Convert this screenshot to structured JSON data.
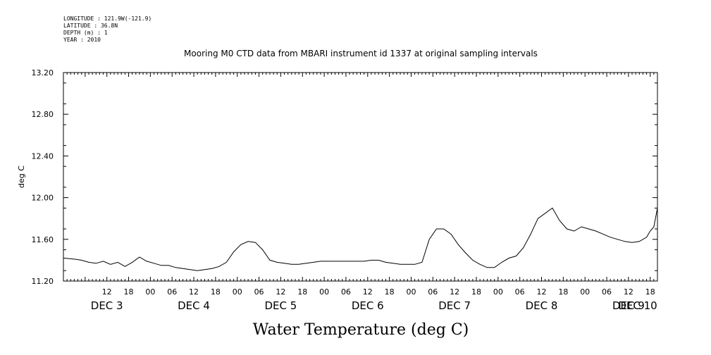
{
  "meta": {
    "longitude": "LONGITUDE : 121.9W(-121.9)",
    "latitude": "LATITUDE : 36.8N",
    "depth": "DEPTH (m) : 1",
    "year": "YEAR : 2010"
  },
  "chart_data": {
    "type": "line",
    "title": "Mooring M0 CTD data from MBARI instrument id 1337 at original sampling intervals",
    "xlabel": "Water Temperature (deg C)",
    "ylabel": "deg C",
    "ylim": [
      11.2,
      13.2
    ],
    "xlim_hours": [
      72,
      236
    ],
    "y_ticks": [
      "11.20",
      "11.60",
      "12.00",
      "12.40",
      "12.80",
      "13.20"
    ],
    "x_hour_labels": [
      {
        "t": 84,
        "label": "12"
      },
      {
        "t": 90,
        "label": "18"
      },
      {
        "t": 96,
        "label": "00"
      },
      {
        "t": 102,
        "label": "06"
      },
      {
        "t": 108,
        "label": "12"
      },
      {
        "t": 114,
        "label": "18"
      },
      {
        "t": 120,
        "label": "00"
      },
      {
        "t": 126,
        "label": "06"
      },
      {
        "t": 132,
        "label": "12"
      },
      {
        "t": 138,
        "label": "18"
      },
      {
        "t": 144,
        "label": "00"
      },
      {
        "t": 150,
        "label": "06"
      },
      {
        "t": 156,
        "label": "12"
      },
      {
        "t": 162,
        "label": "18"
      },
      {
        "t": 168,
        "label": "00"
      },
      {
        "t": 174,
        "label": "06"
      },
      {
        "t": 180,
        "label": "12"
      },
      {
        "t": 186,
        "label": "18"
      },
      {
        "t": 192,
        "label": "00"
      },
      {
        "t": 198,
        "label": "06"
      },
      {
        "t": 204,
        "label": "12"
      },
      {
        "t": 210,
        "label": "18"
      },
      {
        "t": 216,
        "label": "00"
      },
      {
        "t": 222,
        "label": "06"
      },
      {
        "t": 228,
        "label": "12"
      },
      {
        "t": 234,
        "label": "18"
      }
    ],
    "x_day_labels": [
      {
        "t": 84,
        "label": "DEC  3"
      },
      {
        "t": 108,
        "label": "DEC  4"
      },
      {
        "t": 132,
        "label": "DEC  5"
      },
      {
        "t": 156,
        "label": "DEC  6"
      },
      {
        "t": 180,
        "label": "DEC  7"
      },
      {
        "t": 204,
        "label": "DEC  8"
      },
      {
        "t": 228,
        "label": "DEC  9"
      },
      {
        "t": 246,
        "label": "DEC 10"
      }
    ],
    "series": [
      {
        "x": [
          72,
          75,
          77,
          79,
          81,
          83,
          85,
          87,
          89,
          91,
          93,
          95,
          97,
          99,
          101,
          103,
          105,
          107,
          109,
          111,
          113,
          115,
          117,
          119,
          121,
          123,
          125,
          127,
          129,
          131,
          133,
          135,
          137,
          139,
          141,
          143,
          145,
          147,
          149,
          151,
          153,
          155,
          157,
          159,
          161,
          163,
          165,
          167,
          169,
          171,
          173,
          175,
          177,
          179,
          181,
          183,
          185,
          187,
          189,
          191,
          193,
          195,
          197,
          199,
          201,
          203,
          205,
          207,
          209,
          211,
          213,
          215,
          217,
          219,
          221,
          223,
          225,
          227,
          229,
          231,
          233,
          234,
          235,
          236
        ],
        "values": [
          11.42,
          11.41,
          11.4,
          11.38,
          11.37,
          11.39,
          11.36,
          11.38,
          11.34,
          11.38,
          11.43,
          11.39,
          11.37,
          11.35,
          11.35,
          11.33,
          11.32,
          11.31,
          11.3,
          11.31,
          11.32,
          11.34,
          11.38,
          11.48,
          11.55,
          11.58,
          11.57,
          11.5,
          11.4,
          11.38,
          11.37,
          11.36,
          11.36,
          11.37,
          11.38,
          11.39,
          11.39,
          11.39,
          11.39,
          11.39,
          11.39,
          11.39,
          11.4,
          11.4,
          11.38,
          11.37,
          11.36,
          11.36,
          11.36,
          11.38,
          11.6,
          11.7,
          11.7,
          11.65,
          11.55,
          11.47,
          11.4,
          11.36,
          11.33,
          11.33,
          11.38,
          11.42,
          11.44,
          11.52,
          11.65,
          11.8,
          11.85,
          11.9,
          11.78,
          11.7,
          11.68,
          11.72,
          11.7,
          11.68,
          11.65,
          11.62,
          11.6,
          11.58,
          11.57,
          11.58,
          11.62,
          11.68,
          11.72,
          11.9
        ]
      }
    ]
  }
}
